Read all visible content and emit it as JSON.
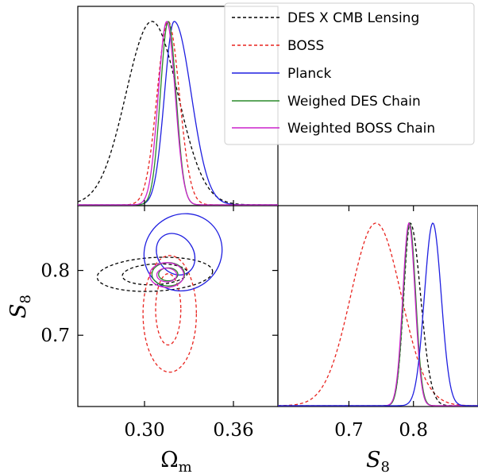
{
  "chart_data": {
    "type": "triangle-plot",
    "legend": {
      "placement": "top-right",
      "entries": [
        {
          "label": "DES X CMB Lensing",
          "color": "#000000",
          "dash": "dashed"
        },
        {
          "label": "BOSS",
          "color": "#e8231e",
          "dash": "dashed"
        },
        {
          "label": "Planck",
          "color": "#1f1fe0",
          "dash": "solid"
        },
        {
          "label": "Weighed DES Chain",
          "color": "#2a8a2a",
          "dash": "solid"
        },
        {
          "label": "Weighted BOSS Chain",
          "color": "#cc22cc",
          "dash": "solid"
        }
      ]
    },
    "axes": {
      "omega_m": {
        "label": "Ω",
        "label_sub": "m",
        "range": [
          0.255,
          0.39
        ],
        "ticks": [
          0.3,
          0.36
        ],
        "tick_labels": [
          "0.30",
          "0.36"
        ]
      },
      "s8": {
        "label": "S",
        "label_sub": "8",
        "range": [
          0.59,
          0.9
        ],
        "ticks": [
          0.8,
          0.7
        ],
        "tick_labels": [
          "0.8",
          "0.7"
        ],
        "diag_range": [
          0.59,
          0.9
        ],
        "diag_ticks": [
          0.7,
          0.8
        ],
        "diag_tick_labels": [
          "0.7",
          "0.8"
        ]
      }
    },
    "marginals_omega_m": [
      {
        "series": "DES X CMB Lensing",
        "mean": 0.305,
        "sigma": 0.0175
      },
      {
        "series": "BOSS",
        "mean": 0.316,
        "sigma": 0.0075
      },
      {
        "series": "Planck",
        "mean": 0.32,
        "sigma_left": 0.0065,
        "sigma_right": 0.0115
      },
      {
        "series": "Weighed DES Chain",
        "mean": 0.316,
        "sigma": 0.0053
      },
      {
        "series": "Weighted BOSS Chain",
        "mean": 0.315,
        "sigma": 0.0057
      }
    ],
    "marginals_s8": [
      {
        "series": "BOSS",
        "mean": 0.742,
        "sigma": 0.039
      },
      {
        "series": "DES X CMB Lensing",
        "mean": 0.795,
        "sigma_left": 0.01,
        "sigma_right": 0.016
      },
      {
        "series": "Weighed DES Chain",
        "mean": 0.794,
        "sigma": 0.0095
      },
      {
        "series": "Weighted BOSS Chain",
        "mean": 0.793,
        "sigma": 0.0095
      },
      {
        "series": "Planck",
        "mean": 0.83,
        "sigma": 0.013
      }
    ],
    "contours_2d": [
      {
        "series": "DES X CMB Lensing",
        "level": "68%",
        "center": [
          0.307,
          0.794
        ],
        "rx": 0.022,
        "ry": 0.016,
        "rot": -3
      },
      {
        "series": "DES X CMB Lensing",
        "level": "95%",
        "center": [
          0.307,
          0.794
        ],
        "rx": 0.039,
        "ry": 0.026,
        "rot": -3
      },
      {
        "series": "BOSS",
        "level": "68%",
        "center": [
          0.316,
          0.74
        ],
        "rx": 0.0085,
        "ry": 0.055,
        "rot": 0
      },
      {
        "series": "BOSS",
        "level": "95%",
        "center": [
          0.317,
          0.733
        ],
        "rx": 0.018,
        "ry": 0.09,
        "rot": 0
      },
      {
        "series": "Planck",
        "level": "68%",
        "center": [
          0.321,
          0.825
        ],
        "rx": 0.012,
        "ry": 0.034,
        "rot": -35
      },
      {
        "series": "Planck",
        "level": "95%",
        "center": [
          0.326,
          0.828
        ],
        "rx": 0.027,
        "ry": 0.058,
        "rot": -40
      },
      {
        "series": "Weighed DES Chain",
        "level": "68%",
        "center": [
          0.316,
          0.794
        ],
        "rx": 0.0065,
        "ry": 0.01,
        "rot": 0
      },
      {
        "series": "Weighed DES Chain",
        "level": "95%",
        "center": [
          0.316,
          0.794
        ],
        "rx": 0.011,
        "ry": 0.018,
        "rot": 0
      },
      {
        "series": "Weighted BOSS Chain",
        "level": "68%",
        "center": [
          0.315,
          0.793
        ],
        "rx": 0.0067,
        "ry": 0.0105,
        "rot": 0
      },
      {
        "series": "Weighted BOSS Chain",
        "level": "95%",
        "center": [
          0.315,
          0.793
        ],
        "rx": 0.0115,
        "ry": 0.019,
        "rot": 0
      }
    ]
  }
}
